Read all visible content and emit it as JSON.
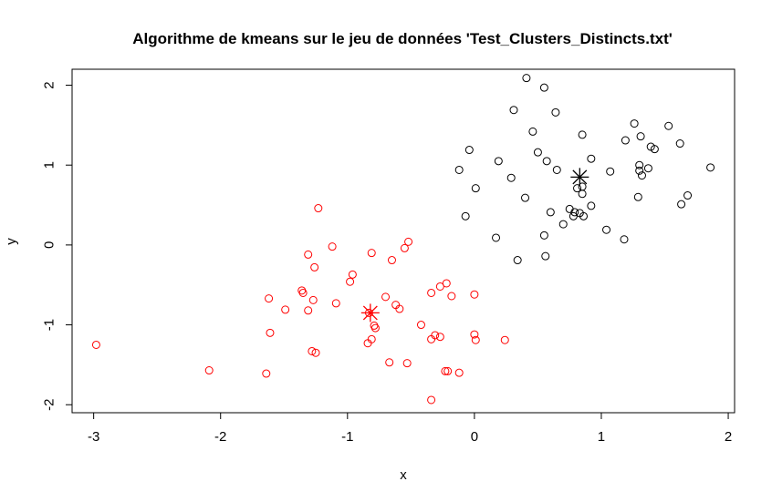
{
  "chart_data": {
    "type": "scatter",
    "title": "Algorithme de kmeans sur le jeu de données 'Test_Clusters_Distincts.txt'",
    "xlabel": "x",
    "ylabel": "y",
    "xlim": [
      -3.17,
      2.05
    ],
    "ylim": [
      -2.1,
      2.2
    ],
    "xticks": [
      "-3",
      "-2",
      "-1",
      "0",
      "1",
      "2"
    ],
    "yticks": [
      "-2",
      "-1",
      "0",
      "1",
      "2"
    ],
    "grid": false,
    "legend": "none",
    "series": [
      {
        "color": "#000000",
        "points": [
          [
            0.41,
            2.09
          ],
          [
            0.55,
            1.97
          ],
          [
            0.31,
            1.69
          ],
          [
            0.64,
            1.66
          ],
          [
            1.53,
            1.49
          ],
          [
            1.26,
            1.52
          ],
          [
            0.46,
            1.42
          ],
          [
            0.85,
            1.38
          ],
          [
            1.19,
            1.31
          ],
          [
            1.31,
            1.36
          ],
          [
            1.62,
            1.27
          ],
          [
            1.39,
            1.23
          ],
          [
            1.42,
            1.2
          ],
          [
            -0.04,
            1.19
          ],
          [
            0.5,
            1.16
          ],
          [
            0.92,
            1.08
          ],
          [
            0.19,
            1.05
          ],
          [
            0.57,
            1.05
          ],
          [
            1.3,
            1.0
          ],
          [
            1.3,
            0.93
          ],
          [
            1.37,
            0.96
          ],
          [
            1.86,
            0.97
          ],
          [
            -0.12,
            0.94
          ],
          [
            0.65,
            0.94
          ],
          [
            1.07,
            0.92
          ],
          [
            1.32,
            0.87
          ],
          [
            0.29,
            0.84
          ],
          [
            0.81,
            0.71
          ],
          [
            0.01,
            0.71
          ],
          [
            0.85,
            0.73
          ],
          [
            0.85,
            0.64
          ],
          [
            1.68,
            0.62
          ],
          [
            0.4,
            0.59
          ],
          [
            1.29,
            0.6
          ],
          [
            1.63,
            0.51
          ],
          [
            0.92,
            0.49
          ],
          [
            0.75,
            0.45
          ],
          [
            0.79,
            0.41
          ],
          [
            0.6,
            0.41
          ],
          [
            0.83,
            0.4
          ],
          [
            0.78,
            0.36
          ],
          [
            0.86,
            0.36
          ],
          [
            -0.07,
            0.36
          ],
          [
            0.7,
            0.26
          ],
          [
            1.04,
            0.19
          ],
          [
            0.55,
            0.12
          ],
          [
            0.17,
            0.09
          ],
          [
            1.18,
            0.07
          ],
          [
            0.56,
            -0.14
          ],
          [
            0.34,
            -0.19
          ]
        ],
        "centroid": [
          0.83,
          0.85
        ]
      },
      {
        "color": "#ff0000",
        "points": [
          [
            -1.23,
            0.46
          ],
          [
            -1.12,
            -0.02
          ],
          [
            -0.52,
            0.04
          ],
          [
            -0.55,
            -0.04
          ],
          [
            -0.81,
            -0.1
          ],
          [
            -1.31,
            -0.12
          ],
          [
            -0.65,
            -0.19
          ],
          [
            -1.26,
            -0.28
          ],
          [
            -0.96,
            -0.37
          ],
          [
            -0.98,
            -0.46
          ],
          [
            -1.36,
            -0.57
          ],
          [
            -1.35,
            -0.6
          ],
          [
            -0.22,
            -0.48
          ],
          [
            -0.27,
            -0.52
          ],
          [
            -0.34,
            -0.6
          ],
          [
            0.0,
            -0.62
          ],
          [
            -1.62,
            -0.67
          ],
          [
            -0.7,
            -0.65
          ],
          [
            -0.18,
            -0.64
          ],
          [
            -1.27,
            -0.69
          ],
          [
            -1.09,
            -0.73
          ],
          [
            -0.62,
            -0.75
          ],
          [
            -0.59,
            -0.8
          ],
          [
            -1.49,
            -0.81
          ],
          [
            -1.31,
            -0.82
          ],
          [
            -0.83,
            -0.85
          ],
          [
            -0.42,
            -1.0
          ],
          [
            -0.79,
            -1.01
          ],
          [
            -0.78,
            -1.04
          ],
          [
            -1.61,
            -1.1
          ],
          [
            -0.0,
            -1.12
          ],
          [
            -0.31,
            -1.13
          ],
          [
            -0.27,
            -1.15
          ],
          [
            -0.34,
            -1.18
          ],
          [
            -0.81,
            -1.18
          ],
          [
            0.01,
            -1.19
          ],
          [
            0.24,
            -1.19
          ],
          [
            -0.84,
            -1.23
          ],
          [
            -2.98,
            -1.25
          ],
          [
            -1.28,
            -1.33
          ],
          [
            -1.25,
            -1.35
          ],
          [
            -0.67,
            -1.47
          ],
          [
            -0.53,
            -1.48
          ],
          [
            -2.09,
            -1.57
          ],
          [
            -0.23,
            -1.58
          ],
          [
            -0.21,
            -1.58
          ],
          [
            -0.12,
            -1.6
          ],
          [
            -1.64,
            -1.61
          ],
          [
            -0.34,
            -1.94
          ]
        ],
        "centroid": [
          -0.82,
          -0.85
        ]
      }
    ]
  }
}
